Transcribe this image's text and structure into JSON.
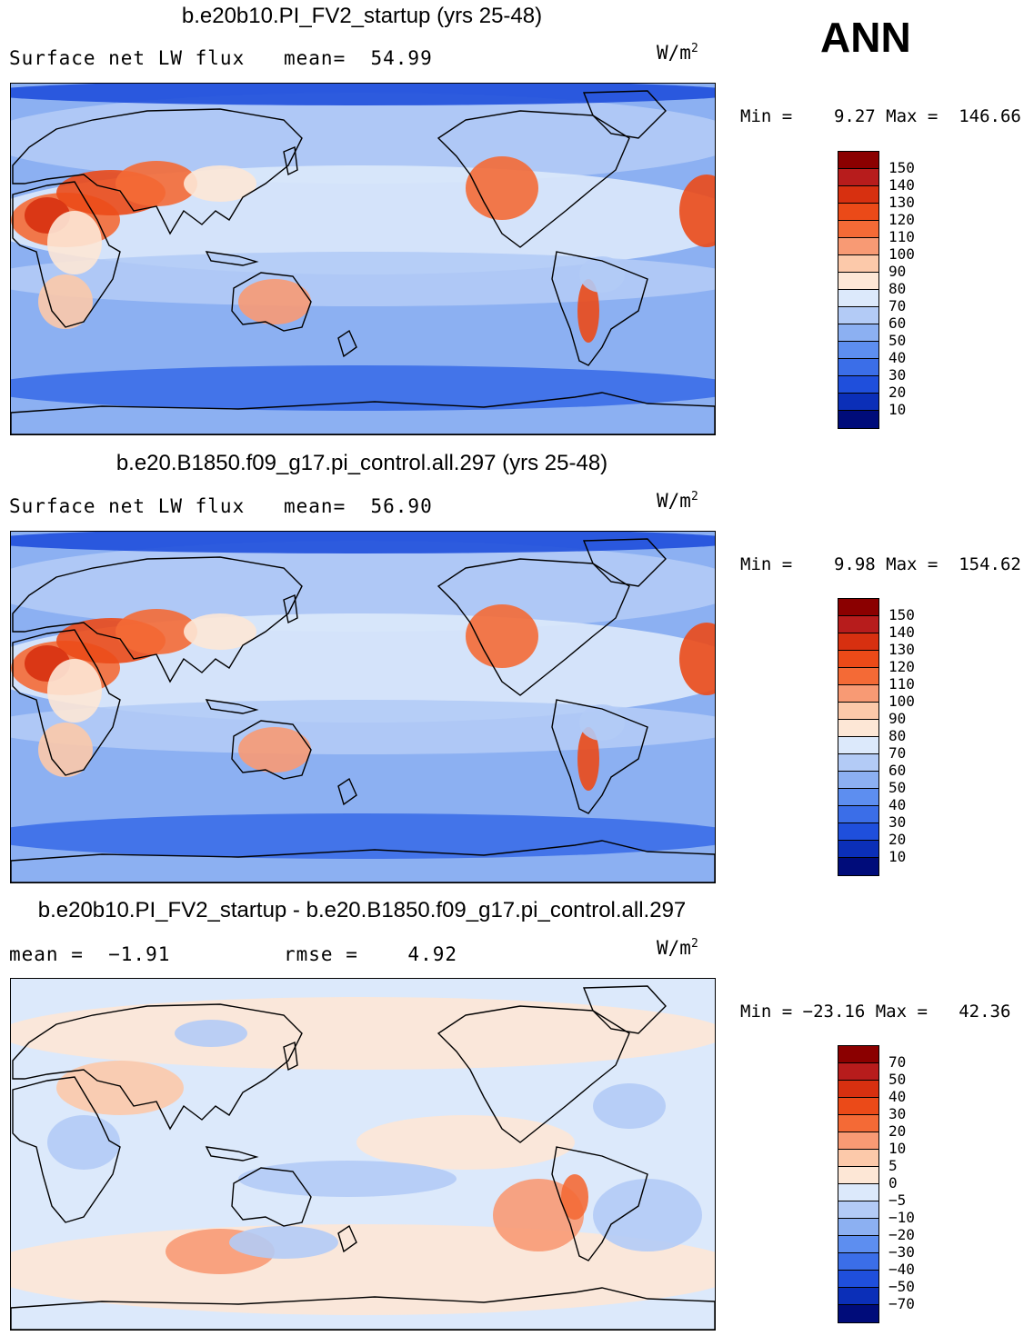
{
  "season": "ANN",
  "panels": [
    {
      "title": "b.e20b10.PI_FV2_startup (yrs 25-48)",
      "left_label": "Surface net LW flux",
      "center_label": "mean=  54.99",
      "units_base": "W/m",
      "units_sup": "2",
      "minmax": "Min =    9.27 Max =  146.66",
      "field": "abs",
      "colorbar": {
        "labels": [
          "150",
          "140",
          "130",
          "120",
          "110",
          "100",
          "90",
          "80",
          "70",
          "60",
          "50",
          "40",
          "30",
          "20",
          "10"
        ],
        "colors": [
          "#8b0000",
          "#b71c1c",
          "#d73010",
          "#eb4a18",
          "#f46a36",
          "#f89a74",
          "#fcc9aa",
          "#fde7d6",
          "#dce9fb",
          "#b3cbf6",
          "#8cb0f2",
          "#5d8ef0",
          "#3b6ee8",
          "#1f4fdc",
          "#0b2fb8",
          "#000c7a"
        ]
      }
    },
    {
      "title": "b.e20.B1850.f09_g17.pi_control.all.297 (yrs 25-48)",
      "left_label": "Surface net LW flux",
      "center_label": "mean=  56.90",
      "units_base": "W/m",
      "units_sup": "2",
      "minmax": "Min =    9.98 Max =  154.62",
      "field": "abs",
      "colorbar": {
        "labels": [
          "150",
          "140",
          "130",
          "120",
          "110",
          "100",
          "90",
          "80",
          "70",
          "60",
          "50",
          "40",
          "30",
          "20",
          "10"
        ],
        "colors": [
          "#8b0000",
          "#b71c1c",
          "#d73010",
          "#eb4a18",
          "#f46a36",
          "#f89a74",
          "#fcc9aa",
          "#fde7d6",
          "#dce9fb",
          "#b3cbf6",
          "#8cb0f2",
          "#5d8ef0",
          "#3b6ee8",
          "#1f4fdc",
          "#0b2fb8",
          "#000c7a"
        ]
      }
    },
    {
      "title": "b.e20b10.PI_FV2_startup - b.e20.B1850.f09_g17.pi_control.all.297",
      "left_label": "mean =  −1.91",
      "center_label": "rmse =    4.92",
      "units_base": "W/m",
      "units_sup": "2",
      "minmax": "Min = −23.16 Max =   42.36",
      "field": "diff",
      "colorbar": {
        "labels": [
          "70",
          "50",
          "40",
          "30",
          "20",
          "10",
          "5",
          "0",
          "−5",
          "−10",
          "−20",
          "−30",
          "−40",
          "−50",
          "−70"
        ],
        "colors": [
          "#8b0000",
          "#b71c1c",
          "#d73010",
          "#eb4a18",
          "#f46a36",
          "#f89a74",
          "#fcc9aa",
          "#fde7d6",
          "#dce9fb",
          "#b3cbf6",
          "#8cb0f2",
          "#5d8ef0",
          "#3b6ee8",
          "#1f4fdc",
          "#0b2fb8",
          "#000c7a"
        ]
      }
    }
  ]
}
